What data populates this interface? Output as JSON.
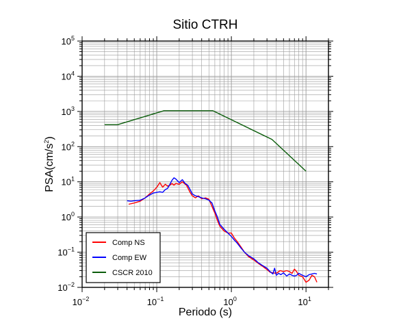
{
  "chart_data": {
    "type": "line",
    "title": "Sitio CTRH",
    "xlabel": "Periodo (s)",
    "ylabel_base": "PSA(cm/s",
    "ylabel_sup": "2",
    "ylabel_close": ")",
    "xscale": "log",
    "yscale": "log",
    "xlim": [
      0.01,
      20
    ],
    "ylim": [
      0.01,
      100000
    ],
    "grid": true,
    "legend_position": "bottom-left",
    "x_ticks": [
      {
        "base": "10",
        "exp": "−2",
        "value": 0.01
      },
      {
        "base": "10",
        "exp": "−1",
        "value": 0.1
      },
      {
        "base": "10",
        "exp": "0",
        "value": 1
      },
      {
        "base": "10",
        "exp": "1",
        "value": 10
      }
    ],
    "y_ticks": [
      {
        "base": "10",
        "exp": "−2",
        "value": 0.01
      },
      {
        "base": "10",
        "exp": "−1",
        "value": 0.1
      },
      {
        "base": "10",
        "exp": "0",
        "value": 1
      },
      {
        "base": "10",
        "exp": "1",
        "value": 10
      },
      {
        "base": "10",
        "exp": "2",
        "value": 100
      },
      {
        "base": "10",
        "exp": "3",
        "value": 1000
      },
      {
        "base": "10",
        "exp": "4",
        "value": 10000
      },
      {
        "base": "10",
        "exp": "5",
        "value": 100000
      }
    ],
    "series": [
      {
        "name": "Comp NS",
        "color": "#ff0000",
        "x": [
          0.042,
          0.05,
          0.06,
          0.07,
          0.08,
          0.09,
          0.1,
          0.11,
          0.12,
          0.13,
          0.14,
          0.15,
          0.16,
          0.17,
          0.18,
          0.2,
          0.22,
          0.25,
          0.28,
          0.3,
          0.33,
          0.36,
          0.4,
          0.45,
          0.5,
          0.55,
          0.6,
          0.65,
          0.7,
          0.8,
          0.9,
          1.0,
          1.1,
          1.2,
          1.35,
          1.5,
          1.7,
          2.0,
          2.3,
          2.6,
          3.0,
          3.3,
          3.6,
          4.0,
          4.5,
          5.0,
          5.5,
          6.0,
          6.5,
          7.0,
          7.5,
          8.0,
          9.0,
          10.0,
          11.0,
          12.0,
          13.0,
          14.0
        ],
        "y": [
          2.3,
          2.5,
          2.8,
          3.5,
          4.5,
          5.5,
          7.0,
          9.5,
          7.0,
          8.5,
          7.5,
          8.0,
          9.0,
          8.0,
          9.0,
          8.5,
          10.0,
          8.0,
          5.0,
          4.0,
          3.5,
          4.0,
          3.3,
          3.5,
          3.2,
          2.0,
          1.3,
          0.8,
          0.55,
          0.4,
          0.35,
          0.35,
          0.25,
          0.2,
          0.14,
          0.1,
          0.075,
          0.06,
          0.048,
          0.04,
          0.032,
          0.027,
          0.026,
          0.025,
          0.03,
          0.028,
          0.03,
          0.028,
          0.025,
          0.033,
          0.028,
          0.022,
          0.02,
          0.014,
          0.016,
          0.022,
          0.02,
          0.014
        ]
      },
      {
        "name": "Comp EW",
        "color": "#0000ff",
        "x": [
          0.04,
          0.045,
          0.05,
          0.06,
          0.07,
          0.08,
          0.09,
          0.1,
          0.11,
          0.12,
          0.13,
          0.14,
          0.15,
          0.16,
          0.17,
          0.18,
          0.2,
          0.22,
          0.24,
          0.26,
          0.28,
          0.3,
          0.33,
          0.36,
          0.4,
          0.45,
          0.5,
          0.55,
          0.6,
          0.65,
          0.7,
          0.8,
          0.9,
          1.0,
          1.1,
          1.2,
          1.35,
          1.5,
          1.7,
          2.0,
          2.3,
          2.6,
          3.0,
          3.3,
          3.6,
          3.8,
          4.0,
          4.3,
          4.6,
          5.0,
          5.5,
          6.0,
          6.5,
          7.0,
          7.5,
          8.0,
          9.0,
          10.0,
          11.0,
          12.0,
          13.0,
          14.0
        ],
        "y": [
          2.9,
          2.8,
          2.9,
          3.0,
          3.5,
          4.2,
          4.8,
          5.0,
          5.2,
          5.0,
          6.0,
          6.5,
          8.5,
          11.0,
          13.0,
          12.0,
          9.5,
          11.5,
          9.0,
          8.0,
          6.0,
          4.5,
          4.0,
          3.8,
          3.5,
          3.3,
          3.0,
          2.5,
          1.5,
          1.0,
          0.62,
          0.45,
          0.35,
          0.28,
          0.22,
          0.18,
          0.13,
          0.1,
          0.08,
          0.065,
          0.05,
          0.042,
          0.035,
          0.028,
          0.024,
          0.035,
          0.022,
          0.025,
          0.023,
          0.026,
          0.021,
          0.024,
          0.022,
          0.021,
          0.022,
          0.025,
          0.022,
          0.02,
          0.023,
          0.024,
          0.025,
          0.024
        ]
      },
      {
        "name": "CSCR 2010",
        "color": "#0a5c0a",
        "x": [
          0.02,
          0.03,
          0.125,
          0.5625,
          3.5,
          10.0
        ],
        "y": [
          420,
          420,
          1050,
          1050,
          160,
          20
        ]
      }
    ]
  }
}
